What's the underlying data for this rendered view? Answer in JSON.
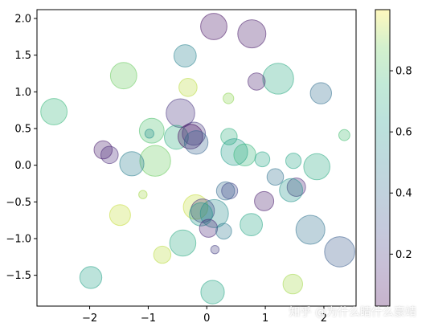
{
  "chart_data": {
    "type": "scatter",
    "title": "",
    "xlabel": "",
    "ylabel": "",
    "xlim": [
      -2.9,
      2.55
    ],
    "ylim": [
      -1.92,
      2.12
    ],
    "xticks": [
      -2,
      -1,
      0,
      1,
      2
    ],
    "xtick_labels": [
      "−2",
      "−1",
      "0",
      "1",
      "2"
    ],
    "yticks": [
      -1.5,
      -1.0,
      -0.5,
      0.0,
      0.5,
      1.0,
      1.5,
      2.0
    ],
    "ytick_labels": [
      "−1.5",
      "−1.0",
      "−0.5",
      "0.0",
      "0.5",
      "1.0",
      "1.5",
      "2.0"
    ],
    "colormap": "viridis",
    "alpha": 0.3,
    "colorbar": {
      "range": [
        0.03,
        1.0
      ],
      "ticks": [
        0.2,
        0.4,
        0.6,
        0.8
      ],
      "tick_labels": [
        "0.2",
        "0.4",
        "0.6",
        "0.8"
      ]
    },
    "grid": false,
    "points": [
      {
        "x": 0.12,
        "y": 1.89,
        "c": 0.05,
        "size": 0.82
      },
      {
        "x": 0.77,
        "y": 1.79,
        "c": 0.07,
        "size": 0.88
      },
      {
        "x": -0.37,
        "y": 1.49,
        "c": 0.5,
        "size": 0.67
      },
      {
        "x": 1.22,
        "y": 1.18,
        "c": 0.68,
        "size": 0.98
      },
      {
        "x": -1.42,
        "y": 1.22,
        "c": 0.86,
        "size": 0.82
      },
      {
        "x": 0.85,
        "y": 1.14,
        "c": 0.09,
        "size": 0.48
      },
      {
        "x": -0.32,
        "y": 1.06,
        "c": 0.94,
        "size": 0.52
      },
      {
        "x": 1.95,
        "y": 0.98,
        "c": 0.4,
        "size": 0.63
      },
      {
        "x": 0.37,
        "y": 0.91,
        "c": 0.9,
        "size": 0.24
      },
      {
        "x": -2.61,
        "y": 0.73,
        "c": 0.75,
        "size": 0.82
      },
      {
        "x": -0.45,
        "y": 0.71,
        "c": 0.16,
        "size": 0.9
      },
      {
        "x": -0.94,
        "y": 0.47,
        "c": 0.8,
        "size": 0.76
      },
      {
        "x": -0.98,
        "y": 0.43,
        "c": 0.55,
        "size": 0.18
      },
      {
        "x": -0.52,
        "y": 0.38,
        "c": 0.7,
        "size": 0.73
      },
      {
        "x": -0.22,
        "y": 0.43,
        "c": 0.18,
        "size": 0.7
      },
      {
        "x": -0.28,
        "y": 0.39,
        "c": 0.03,
        "size": 0.76
      },
      {
        "x": -0.18,
        "y": 0.31,
        "c": 0.35,
        "size": 0.72
      },
      {
        "x": 0.38,
        "y": 0.39,
        "c": 0.72,
        "size": 0.45
      },
      {
        "x": 2.35,
        "y": 0.41,
        "c": 0.78,
        "size": 0.26
      },
      {
        "x": 0.47,
        "y": 0.18,
        "c": 0.62,
        "size": 0.83
      },
      {
        "x": 0.65,
        "y": 0.14,
        "c": 0.75,
        "size": 0.66
      },
      {
        "x": -1.77,
        "y": 0.21,
        "c": 0.08,
        "size": 0.52
      },
      {
        "x": -1.66,
        "y": 0.14,
        "c": 0.13,
        "size": 0.49
      },
      {
        "x": -0.88,
        "y": 0.06,
        "c": 0.86,
        "size": 0.98
      },
      {
        "x": -1.28,
        "y": 0.02,
        "c": 0.48,
        "size": 0.74
      },
      {
        "x": 0.95,
        "y": 0.08,
        "c": 0.66,
        "size": 0.4
      },
      {
        "x": 1.48,
        "y": 0.06,
        "c": 0.66,
        "size": 0.42
      },
      {
        "x": 1.88,
        "y": -0.02,
        "c": 0.68,
        "size": 0.81
      },
      {
        "x": 1.17,
        "y": -0.16,
        "c": 0.42,
        "size": 0.46
      },
      {
        "x": 1.53,
        "y": -0.3,
        "c": 0.12,
        "size": 0.53
      },
      {
        "x": 1.44,
        "y": -0.34,
        "c": 0.58,
        "size": 0.7
      },
      {
        "x": 0.32,
        "y": -0.35,
        "c": 0.38,
        "size": 0.52
      },
      {
        "x": 0.39,
        "y": -0.35,
        "c": 0.24,
        "size": 0.44
      },
      {
        "x": -1.09,
        "y": -0.4,
        "c": 0.92,
        "size": 0.16
      },
      {
        "x": 0.98,
        "y": -0.49,
        "c": 0.08,
        "size": 0.56
      },
      {
        "x": -0.19,
        "y": -0.57,
        "c": 0.95,
        "size": 0.75
      },
      {
        "x": -0.07,
        "y": -0.62,
        "c": 0.16,
        "size": 0.72
      },
      {
        "x": 0.13,
        "y": -0.66,
        "c": 0.54,
        "size": 0.88
      },
      {
        "x": -0.1,
        "y": -0.67,
        "c": 0.6,
        "size": 0.7
      },
      {
        "x": -1.48,
        "y": -0.68,
        "c": 0.95,
        "size": 0.62
      },
      {
        "x": 0.76,
        "y": -0.81,
        "c": 0.66,
        "size": 0.67
      },
      {
        "x": 0.03,
        "y": -0.86,
        "c": 0.12,
        "size": 0.51
      },
      {
        "x": 0.29,
        "y": -0.9,
        "c": 0.45,
        "size": 0.43
      },
      {
        "x": 1.77,
        "y": -0.88,
        "c": 0.42,
        "size": 0.91
      },
      {
        "x": -0.41,
        "y": -1.06,
        "c": 0.68,
        "size": 0.81
      },
      {
        "x": 0.14,
        "y": -1.15,
        "c": 0.2,
        "size": 0.16
      },
      {
        "x": 2.27,
        "y": -1.18,
        "c": 0.32,
        "size": 0.96
      },
      {
        "x": -0.76,
        "y": -1.22,
        "c": 0.94,
        "size": 0.48
      },
      {
        "x": -1.98,
        "y": -1.53,
        "c": 0.64,
        "size": 0.66
      },
      {
        "x": 1.47,
        "y": -1.62,
        "c": 0.92,
        "size": 0.57
      },
      {
        "x": 0.1,
        "y": -1.73,
        "c": 0.66,
        "size": 0.71
      }
    ]
  },
  "watermark": "知乎 @为什么睛什么豪靖"
}
